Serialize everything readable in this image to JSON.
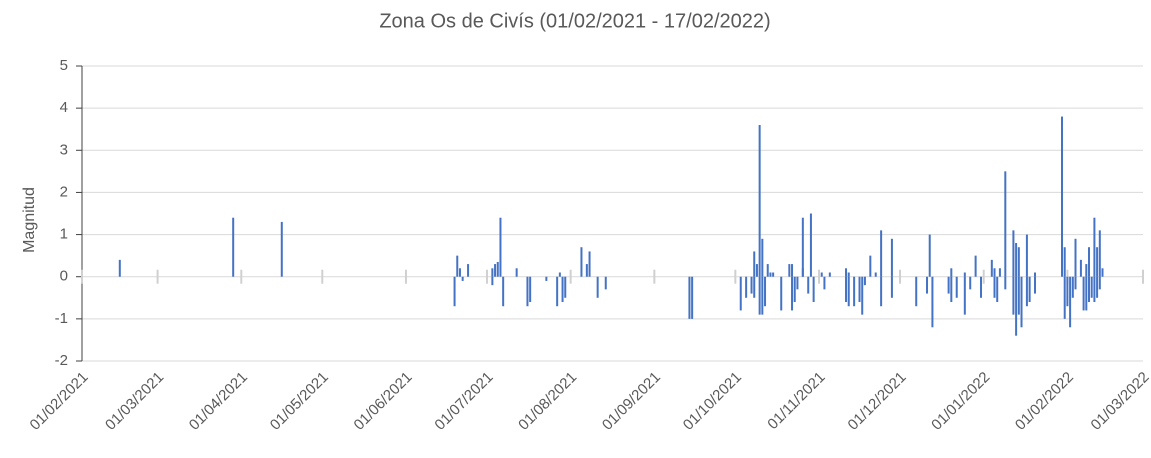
{
  "chart_data": {
    "type": "bar",
    "title": "Zona Os de Civís (01/02/2021 - 17/02/2022)",
    "y_label": "Magnitud",
    "color": "#4472c4",
    "grid": true,
    "xlim": [
      "01/02/2021",
      "01/03/2022"
    ],
    "xticks": [
      "01/02/2021",
      "01/03/2021",
      "01/04/2021",
      "01/05/2021",
      "01/06/2021",
      "01/07/2021",
      "01/08/2021",
      "01/09/2021",
      "01/10/2021",
      "01/11/2021",
      "01/12/2021",
      "01/01/2022",
      "01/02/2022",
      "01/03/2022"
    ],
    "ylim": [
      -2,
      5
    ],
    "yticks": [
      -2,
      -1,
      0,
      1,
      2,
      3,
      4,
      5
    ],
    "x": [
      "15/02/2021",
      "29/03/2021",
      "16/04/2021",
      "19/06/2021",
      "20/06/2021",
      "21/06/2021",
      "22/06/2021",
      "24/06/2021",
      "03/07/2021",
      "03/07/2021",
      "04/07/2021",
      "05/07/2021",
      "06/07/2021",
      "07/07/2021",
      "12/07/2021",
      "16/07/2021",
      "17/07/2021",
      "23/07/2021",
      "27/07/2021",
      "28/07/2021",
      "29/07/2021",
      "30/07/2021",
      "05/08/2021",
      "07/08/2021",
      "08/08/2021",
      "11/08/2021",
      "14/08/2021",
      "14/09/2021",
      "15/09/2021",
      "03/10/2021",
      "05/10/2021",
      "07/10/2021",
      "08/10/2021",
      "08/10/2021",
      "09/10/2021",
      "10/10/2021",
      "10/10/2021",
      "11/10/2021",
      "11/10/2021",
      "12/10/2021",
      "13/10/2021",
      "14/10/2021",
      "15/10/2021",
      "18/10/2021",
      "21/10/2021",
      "22/10/2021",
      "22/10/2021",
      "23/10/2021",
      "24/10/2021",
      "26/10/2021",
      "26/10/2021",
      "28/10/2021",
      "29/10/2021",
      "30/10/2021",
      "02/11/2021",
      "03/11/2021",
      "05/11/2021",
      "11/11/2021",
      "11/11/2021",
      "12/11/2021",
      "12/11/2021",
      "14/11/2021",
      "16/11/2021",
      "17/11/2021",
      "18/11/2021",
      "20/11/2021",
      "22/11/2021",
      "24/11/2021",
      "24/11/2021",
      "28/11/2021",
      "28/11/2021",
      "07/12/2021",
      "11/12/2021",
      "12/12/2021",
      "13/12/2021",
      "19/12/2021",
      "20/12/2021",
      "20/12/2021",
      "22/12/2021",
      "25/12/2021",
      "25/12/2021",
      "27/12/2021",
      "29/12/2021",
      "31/12/2021",
      "04/01/2022",
      "05/01/2022",
      "05/01/2022",
      "06/01/2022",
      "07/01/2022",
      "09/01/2022",
      "09/01/2022",
      "12/01/2022",
      "12/01/2022",
      "13/01/2022",
      "13/01/2022",
      "14/01/2022",
      "14/01/2022",
      "15/01/2022",
      "17/01/2022",
      "17/01/2022",
      "18/01/2022",
      "20/01/2022",
      "20/01/2022",
      "30/01/2022",
      "31/01/2022",
      "31/01/2022",
      "01/02/2022",
      "02/02/2022",
      "03/02/2022",
      "04/02/2022",
      "04/02/2022",
      "06/02/2022",
      "07/02/2022",
      "08/02/2022",
      "08/02/2022",
      "09/02/2022",
      "09/02/2022",
      "10/02/2022",
      "11/02/2022",
      "11/02/2022",
      "12/02/2022",
      "12/02/2022",
      "13/02/2022",
      "13/02/2022",
      "14/02/2022"
    ],
    "values": [
      0.4,
      1.4,
      1.3,
      -0.7,
      0.5,
      0.2,
      -0.1,
      0.3,
      0.2,
      -0.2,
      0.3,
      0.35,
      1.4,
      -0.7,
      0.2,
      -0.7,
      -0.6,
      -0.1,
      -0.7,
      0.1,
      -0.6,
      -0.5,
      0.7,
      0.3,
      0.6,
      -0.5,
      -0.3,
      -1,
      -1,
      -0.8,
      -0.5,
      -0.4,
      0.6,
      -0.5,
      0.3,
      3.6,
      -0.9,
      0.9,
      -0.9,
      -0.7,
      0.3,
      0.1,
      0.1,
      -0.8,
      0.3,
      0.3,
      -0.8,
      -0.6,
      -0.3,
      1.4,
      0.2,
      -0.4,
      1.5,
      -0.6,
      0.1,
      -0.3,
      0.1,
      0.2,
      -0.6,
      0.1,
      -0.7,
      -0.7,
      -0.6,
      -0.9,
      -0.2,
      0.5,
      0.1,
      1.1,
      -0.7,
      0.9,
      -0.5,
      -0.7,
      -0.4,
      1.0,
      -1.2,
      -0.4,
      0.2,
      -0.6,
      -0.5,
      0.1,
      -0.9,
      -0.3,
      0.5,
      -0.5,
      0.4,
      -0.5,
      0.2,
      -0.6,
      0.2,
      2.5,
      -0.3,
      1.1,
      -0.9,
      0.8,
      -1.4,
      0.7,
      -0.9,
      -1.2,
      1.0,
      -0.7,
      -0.6,
      0.1,
      -0.4,
      3.8,
      0.7,
      -1.0,
      -0.7,
      -1.2,
      -0.5,
      0.9,
      -0.3,
      0.4,
      -0.8,
      0.3,
      -0.8,
      0.7,
      -0.6,
      -0.5,
      1.4,
      -0.6,
      0.7,
      -0.5,
      1.1,
      -0.3,
      0.2
    ]
  }
}
